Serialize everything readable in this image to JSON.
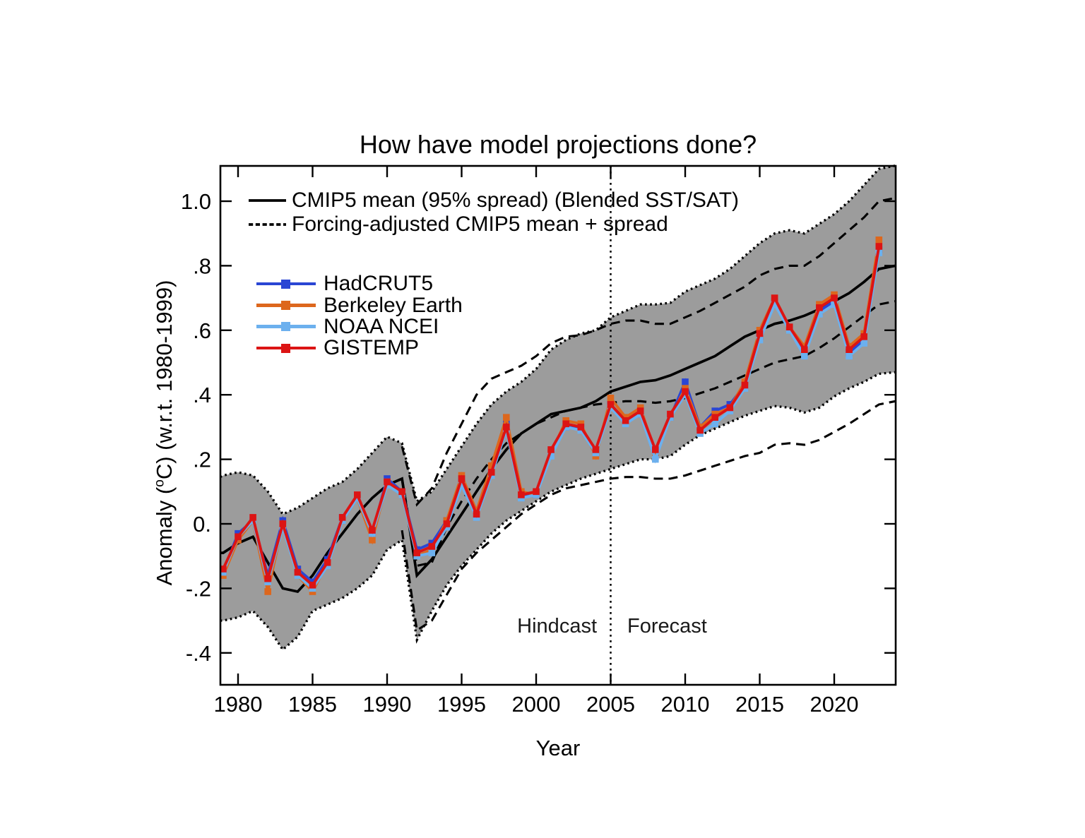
{
  "title": "How have model projections done?",
  "annotations": {
    "hindcast": "Hindcast",
    "forecast": "Forecast",
    "divider_year": 2005
  },
  "model_legend": [
    {
      "label": "CMIP5 mean (95% spread) (Blended SST/SAT)",
      "style": "solid"
    },
    {
      "label": "Forcing-adjusted CMIP5 mean + spread",
      "style": "dashed"
    }
  ],
  "axes": {
    "xlabel": "Year",
    "ylabel_prefix": "Anomaly (",
    "ylabel_sup": "o",
    "ylabel_suffix": "C) (w.r.t. 1980-1999)",
    "xticks": [
      1980,
      1985,
      1990,
      1995,
      2000,
      2005,
      2010,
      2015,
      2020
    ],
    "xtick_labels": [
      "1980",
      "1985",
      "1990",
      "1995",
      "2000",
      "2005",
      "2010",
      "2015",
      "2020"
    ],
    "yticks": [
      1.0,
      0.8,
      0.6,
      0.4,
      0.2,
      0.0,
      -0.2,
      -0.4
    ],
    "ytick_labels": [
      "1.0",
      ".8",
      ".6",
      ".4",
      ".2",
      "0.",
      "-.2",
      "-.4"
    ],
    "xlim": [
      1978.8,
      2024.1
    ],
    "ylim": [
      -0.5,
      1.11
    ],
    "grid": false
  },
  "chart_data": {
    "type": "line",
    "band_color": "#9c9c9c",
    "model_color": "#000000",
    "x": [
      1979,
      1980,
      1981,
      1982,
      1983,
      1984,
      1985,
      1986,
      1987,
      1988,
      1989,
      1990,
      1991,
      1992,
      1993,
      1994,
      1995,
      1996,
      1997,
      1998,
      1999,
      2000,
      2001,
      2002,
      2003,
      2004,
      2005,
      2006,
      2007,
      2008,
      2009,
      2010,
      2011,
      2012,
      2013,
      2014,
      2015,
      2016,
      2017,
      2018,
      2019,
      2020,
      2021,
      2022,
      2023
    ],
    "series": [
      {
        "name": "HadCRUT5",
        "color": "#2a46d4",
        "values": [
          -0.15,
          -0.03,
          0.01,
          -0.16,
          0.01,
          -0.14,
          -0.18,
          -0.11,
          0.02,
          0.08,
          -0.03,
          0.14,
          0.1,
          -0.08,
          -0.06,
          0.01,
          0.13,
          0.03,
          0.17,
          0.31,
          0.09,
          0.09,
          0.22,
          0.3,
          0.3,
          0.22,
          0.37,
          0.32,
          0.34,
          0.22,
          0.33,
          0.44,
          0.3,
          0.35,
          0.37,
          0.43,
          0.58,
          0.69,
          0.61,
          0.53,
          0.66,
          0.69,
          0.53,
          0.57,
          0.85
        ]
      },
      {
        "name": "Berkeley Earth",
        "color": "#dd671d",
        "values": [
          -0.16,
          -0.05,
          0.01,
          -0.21,
          0.0,
          -0.16,
          -0.21,
          -0.12,
          0.01,
          0.08,
          -0.05,
          0.13,
          0.09,
          -0.1,
          -0.08,
          0.01,
          0.15,
          0.04,
          0.18,
          0.33,
          0.1,
          0.09,
          0.22,
          0.32,
          0.31,
          0.21,
          0.39,
          0.33,
          0.36,
          0.22,
          0.33,
          0.42,
          0.3,
          0.34,
          0.36,
          0.44,
          0.6,
          0.7,
          0.61,
          0.55,
          0.68,
          0.71,
          0.55,
          0.59,
          0.88
        ]
      },
      {
        "name": "NOAA NCEI",
        "color": "#6cb0ee",
        "values": [
          -0.15,
          -0.04,
          0.01,
          -0.18,
          -0.01,
          -0.16,
          -0.2,
          -0.13,
          0.01,
          0.08,
          -0.03,
          0.12,
          0.09,
          -0.1,
          -0.09,
          -0.01,
          0.12,
          0.02,
          0.15,
          0.29,
          0.08,
          0.09,
          0.21,
          0.3,
          0.29,
          0.22,
          0.36,
          0.31,
          0.34,
          0.2,
          0.33,
          0.4,
          0.28,
          0.31,
          0.35,
          0.42,
          0.57,
          0.68,
          0.6,
          0.52,
          0.65,
          0.68,
          0.52,
          0.56,
          0.84
        ]
      },
      {
        "name": "GISTEMP",
        "color": "#dc1414",
        "values": [
          -0.14,
          -0.04,
          0.02,
          -0.17,
          0.0,
          -0.15,
          -0.19,
          -0.12,
          0.02,
          0.09,
          -0.02,
          0.13,
          0.1,
          -0.09,
          -0.07,
          0.0,
          0.14,
          0.03,
          0.16,
          0.3,
          0.09,
          0.1,
          0.23,
          0.31,
          0.3,
          0.23,
          0.37,
          0.32,
          0.35,
          0.23,
          0.34,
          0.41,
          0.29,
          0.33,
          0.36,
          0.43,
          0.59,
          0.7,
          0.61,
          0.54,
          0.67,
          0.7,
          0.54,
          0.58,
          0.86
        ]
      }
    ],
    "model": {
      "years": [
        1978.8,
        1979,
        1980,
        1981,
        1982,
        1983,
        1984,
        1985,
        1986,
        1987,
        1988,
        1989,
        1990,
        1991,
        1992,
        1993,
        1994,
        1995,
        1996,
        1997,
        1998,
        1999,
        2000,
        2001,
        2002,
        2003,
        2004,
        2005,
        2006,
        2007,
        2008,
        2009,
        2010,
        2011,
        2012,
        2013,
        2014,
        2015,
        2016,
        2017,
        2018,
        2019,
        2020,
        2021,
        2022,
        2023,
        2024.1
      ],
      "cmip5_mean": [
        -0.09,
        -0.09,
        -0.06,
        -0.04,
        -0.12,
        -0.2,
        -0.21,
        -0.16,
        -0.09,
        -0.03,
        0.03,
        0.08,
        0.12,
        0.14,
        -0.16,
        -0.11,
        -0.04,
        0.03,
        0.1,
        0.17,
        0.23,
        0.28,
        0.31,
        0.34,
        0.35,
        0.36,
        0.38,
        0.41,
        0.425,
        0.44,
        0.445,
        0.46,
        0.48,
        0.5,
        0.52,
        0.55,
        0.58,
        0.6,
        0.62,
        0.63,
        0.645,
        0.665,
        0.69,
        0.715,
        0.75,
        0.79,
        0.8
      ],
      "cmip5_upper": [
        0.145,
        0.15,
        0.16,
        0.15,
        0.1,
        0.03,
        0.05,
        0.08,
        0.11,
        0.13,
        0.17,
        0.22,
        0.27,
        0.25,
        0.07,
        0.1,
        0.17,
        0.24,
        0.31,
        0.37,
        0.41,
        0.44,
        0.48,
        0.54,
        0.57,
        0.59,
        0.6,
        0.64,
        0.66,
        0.68,
        0.68,
        0.685,
        0.72,
        0.74,
        0.76,
        0.79,
        0.83,
        0.87,
        0.9,
        0.91,
        0.9,
        0.93,
        0.96,
        1.0,
        1.05,
        1.1,
        1.11
      ],
      "cmip5_lower": [
        -0.3,
        -0.3,
        -0.29,
        -0.27,
        -0.32,
        -0.39,
        -0.35,
        -0.27,
        -0.25,
        -0.23,
        -0.2,
        -0.16,
        -0.08,
        -0.05,
        -0.36,
        -0.27,
        -0.19,
        -0.13,
        -0.08,
        -0.03,
        0.01,
        0.04,
        0.07,
        0.1,
        0.12,
        0.14,
        0.155,
        0.17,
        0.185,
        0.2,
        0.2,
        0.21,
        0.245,
        0.275,
        0.295,
        0.315,
        0.335,
        0.35,
        0.365,
        0.36,
        0.345,
        0.36,
        0.395,
        0.42,
        0.44,
        0.465,
        0.47
      ],
      "forcing_years": [
        1991,
        1992,
        1993,
        1994,
        1995,
        1996,
        1997,
        1998,
        1999,
        2000,
        2001,
        2002,
        2003,
        2004,
        2005,
        2006,
        2007,
        2008,
        2009,
        2010,
        2011,
        2012,
        2013,
        2014,
        2015,
        2016,
        2017,
        2018,
        2019,
        2020,
        2021,
        2022,
        2023,
        2024.1
      ],
      "forcing_upper": [
        0.24,
        0.06,
        0.11,
        0.22,
        0.31,
        0.4,
        0.45,
        0.47,
        0.49,
        0.52,
        0.56,
        0.58,
        0.585,
        0.6,
        0.62,
        0.63,
        0.63,
        0.62,
        0.62,
        0.64,
        0.66,
        0.685,
        0.71,
        0.735,
        0.77,
        0.79,
        0.8,
        0.8,
        0.83,
        0.87,
        0.91,
        0.95,
        1.0,
        1.01
      ],
      "forcing_mean": [
        0.14,
        -0.13,
        -0.12,
        -0.01,
        0.07,
        0.14,
        0.2,
        0.25,
        0.28,
        0.31,
        0.33,
        0.35,
        0.36,
        0.37,
        0.375,
        0.38,
        0.38,
        0.375,
        0.38,
        0.39,
        0.405,
        0.42,
        0.44,
        0.46,
        0.48,
        0.5,
        0.51,
        0.52,
        0.545,
        0.575,
        0.61,
        0.645,
        0.68,
        0.69
      ],
      "forcing_lower": [
        -0.02,
        -0.33,
        -0.3,
        -0.22,
        -0.14,
        -0.09,
        -0.05,
        -0.01,
        0.03,
        0.06,
        0.09,
        0.11,
        0.12,
        0.13,
        0.14,
        0.145,
        0.145,
        0.14,
        0.14,
        0.15,
        0.165,
        0.18,
        0.195,
        0.21,
        0.22,
        0.245,
        0.25,
        0.245,
        0.26,
        0.285,
        0.31,
        0.34,
        0.37,
        0.38
      ]
    }
  }
}
